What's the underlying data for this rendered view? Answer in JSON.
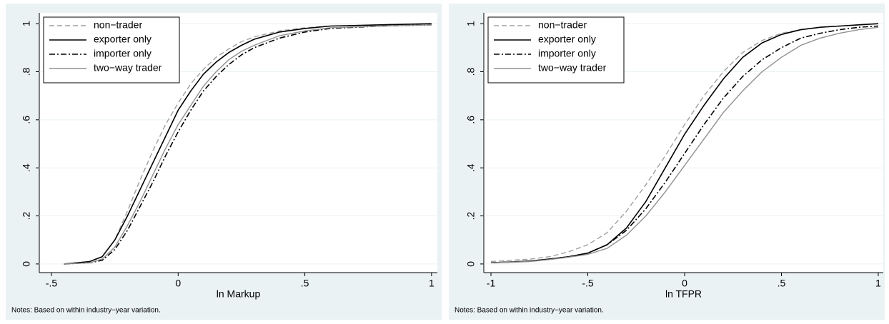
{
  "chart_data": [
    {
      "type": "line",
      "xlabel": "ln Markup",
      "note": "Notes: Based on within industry−year variation.",
      "x": [
        -0.45,
        -0.35,
        -0.3,
        -0.25,
        -0.2,
        -0.15,
        -0.1,
        -0.05,
        0,
        0.05,
        0.1,
        0.15,
        0.2,
        0.25,
        0.3,
        0.4,
        0.5,
        0.6,
        0.8,
        1
      ],
      "series": [
        {
          "name": "non−trader",
          "color": "#a0a0a0",
          "dash": "dashed",
          "values": [
            0,
            0.01,
            0.03,
            0.1,
            0.22,
            0.35,
            0.47,
            0.58,
            0.67,
            0.75,
            0.81,
            0.86,
            0.895,
            0.925,
            0.945,
            0.97,
            0.983,
            0.99,
            0.995,
            1
          ]
        },
        {
          "name": "exporter only",
          "color": "#000000",
          "dash": "solid",
          "values": [
            0,
            0.01,
            0.03,
            0.1,
            0.2,
            0.31,
            0.42,
            0.53,
            0.64,
            0.72,
            0.79,
            0.84,
            0.88,
            0.91,
            0.935,
            0.965,
            0.98,
            0.99,
            0.995,
            1
          ]
        },
        {
          "name": "importer only",
          "color": "#000000",
          "dash": "dashdot",
          "values": [
            0,
            0.005,
            0.015,
            0.06,
            0.14,
            0.24,
            0.34,
            0.45,
            0.55,
            0.64,
            0.72,
            0.78,
            0.83,
            0.87,
            0.9,
            0.94,
            0.965,
            0.98,
            0.99,
            0.995
          ]
        },
        {
          "name": "two−way trader",
          "color": "#909090",
          "dash": "solid",
          "values": [
            0,
            0.005,
            0.02,
            0.07,
            0.16,
            0.26,
            0.37,
            0.48,
            0.58,
            0.66,
            0.74,
            0.8,
            0.85,
            0.885,
            0.91,
            0.95,
            0.97,
            0.983,
            0.99,
            0.995
          ]
        }
      ],
      "xlim": [
        -0.548,
        1.023
      ],
      "ylim": [
        -0.036,
        1.045
      ],
      "xticks": [
        {
          "value": -0.5,
          "label": "-.5"
        },
        0,
        {
          "value": 0.5,
          "label": ".5"
        },
        1
      ],
      "yticks": [
        0,
        {
          "value": 0.2,
          "label": ".2"
        },
        {
          "value": 0.4,
          "label": ".4"
        },
        {
          "value": 0.6,
          "label": ".6"
        },
        {
          "value": 0.8,
          "label": ".8"
        },
        1
      ],
      "grid": true,
      "legend": "top-left"
    },
    {
      "type": "line",
      "xlabel": "ln TFPR",
      "note": "Notes: Based on within industry−year variation.",
      "x": [
        -1,
        -0.9,
        -0.8,
        -0.7,
        -0.6,
        -0.5,
        -0.4,
        -0.3,
        -0.2,
        -0.1,
        0,
        0.1,
        0.2,
        0.3,
        0.4,
        0.5,
        0.6,
        0.7,
        0.8,
        0.9,
        1
      ],
      "series": [
        {
          "name": "non−trader",
          "color": "#a0a0a0",
          "dash": "dashed",
          "values": [
            0.01,
            0.015,
            0.02,
            0.03,
            0.05,
            0.08,
            0.13,
            0.22,
            0.33,
            0.45,
            0.58,
            0.7,
            0.8,
            0.88,
            0.93,
            0.96,
            0.975,
            0.985,
            0.99,
            0.995,
            1
          ]
        },
        {
          "name": "exporter only",
          "color": "#000000",
          "dash": "solid",
          "values": [
            0.005,
            0.008,
            0.012,
            0.02,
            0.03,
            0.045,
            0.08,
            0.15,
            0.26,
            0.4,
            0.54,
            0.66,
            0.77,
            0.86,
            0.92,
            0.955,
            0.975,
            0.985,
            0.99,
            0.995,
            1
          ]
        },
        {
          "name": "importer only",
          "color": "#000000",
          "dash": "dashdot",
          "values": [
            0.005,
            0.008,
            0.012,
            0.02,
            0.03,
            0.045,
            0.08,
            0.14,
            0.23,
            0.34,
            0.46,
            0.58,
            0.69,
            0.78,
            0.85,
            0.9,
            0.94,
            0.96,
            0.975,
            0.985,
            0.99
          ]
        },
        {
          "name": "two−way trader",
          "color": "#909090",
          "dash": "solid",
          "values": [
            0.005,
            0.007,
            0.01,
            0.018,
            0.028,
            0.04,
            0.065,
            0.12,
            0.2,
            0.3,
            0.41,
            0.52,
            0.63,
            0.72,
            0.8,
            0.86,
            0.91,
            0.94,
            0.96,
            0.975,
            0.985
          ]
        }
      ],
      "xlim": [
        -1.037,
        1.026
      ],
      "ylim": [
        -0.036,
        1.045
      ],
      "xticks": [
        -1,
        {
          "value": -0.5,
          "label": "-.5"
        },
        0,
        {
          "value": 0.5,
          "label": ".5"
        },
        1
      ],
      "yticks": [
        0,
        {
          "value": 0.2,
          "label": ".2"
        },
        {
          "value": 0.4,
          "label": ".4"
        },
        {
          "value": 0.6,
          "label": ".6"
        },
        {
          "value": 0.8,
          "label": ".8"
        },
        1
      ],
      "grid": true,
      "legend": "top-left"
    }
  ]
}
